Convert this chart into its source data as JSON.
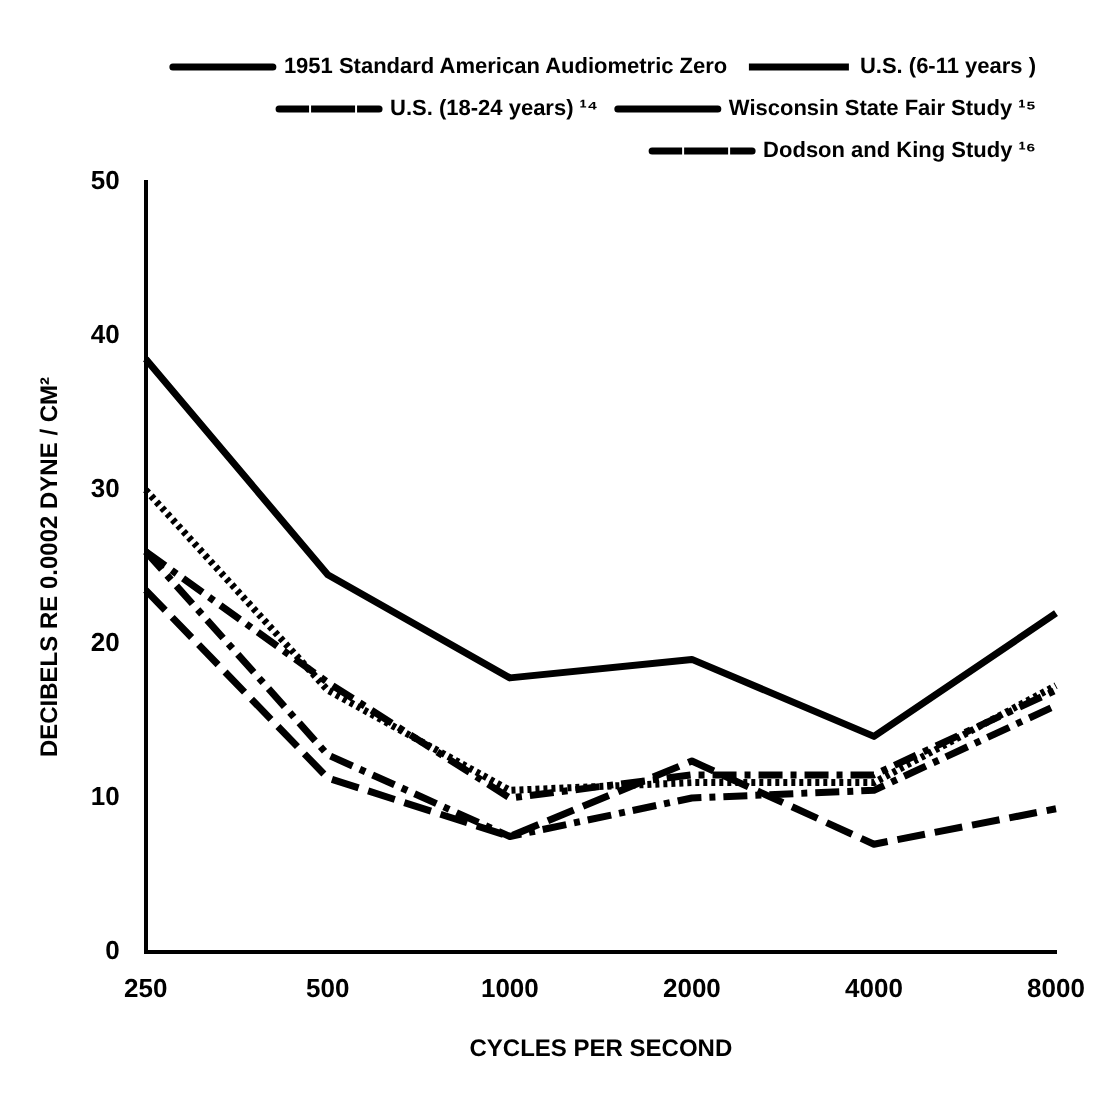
{
  "chart_data": {
    "type": "line",
    "xlabel": "CYCLES PER SECOND",
    "ylabel": "DECIBELS RE 0.0002 DYNE / CM²",
    "categories": [
      "250",
      "500",
      "1000",
      "2000",
      "4000",
      "8000"
    ],
    "ylim": [
      0,
      50
    ],
    "yticks": [
      0,
      10,
      20,
      30,
      40,
      50
    ],
    "grid": false,
    "legend": "top right",
    "marker": "none",
    "series": [
      {
        "name": "1951 Standard American Audiometric Zero",
        "color": "#000000",
        "line_style": "solid",
        "values": [
          38.5,
          24.5,
          17.8,
          19,
          14,
          22
        ]
      },
      {
        "name": "U.S. (6-11 years )",
        "color": "#000000",
        "line_style": "dotted",
        "values": [
          30,
          17,
          10.5,
          11,
          11,
          17.3
        ]
      },
      {
        "name": "U.S. (18-24 years) ¹⁴",
        "color": "#000000",
        "line_style": "dashdot",
        "values": [
          26,
          17.5,
          10,
          11.5,
          11.5,
          17
        ]
      },
      {
        "name": "Wisconsin State Fair Study ¹⁵",
        "color": "#000000",
        "line_style": "dashed",
        "values": [
          23.5,
          11.3,
          7.5,
          12.4,
          7,
          9.3
        ]
      },
      {
        "name": "Dodson and King Study ¹⁶",
        "color": "#000000",
        "line_style": "dashdot",
        "values": [
          26,
          12.8,
          7.5,
          10,
          10.5,
          16
        ]
      }
    ]
  }
}
